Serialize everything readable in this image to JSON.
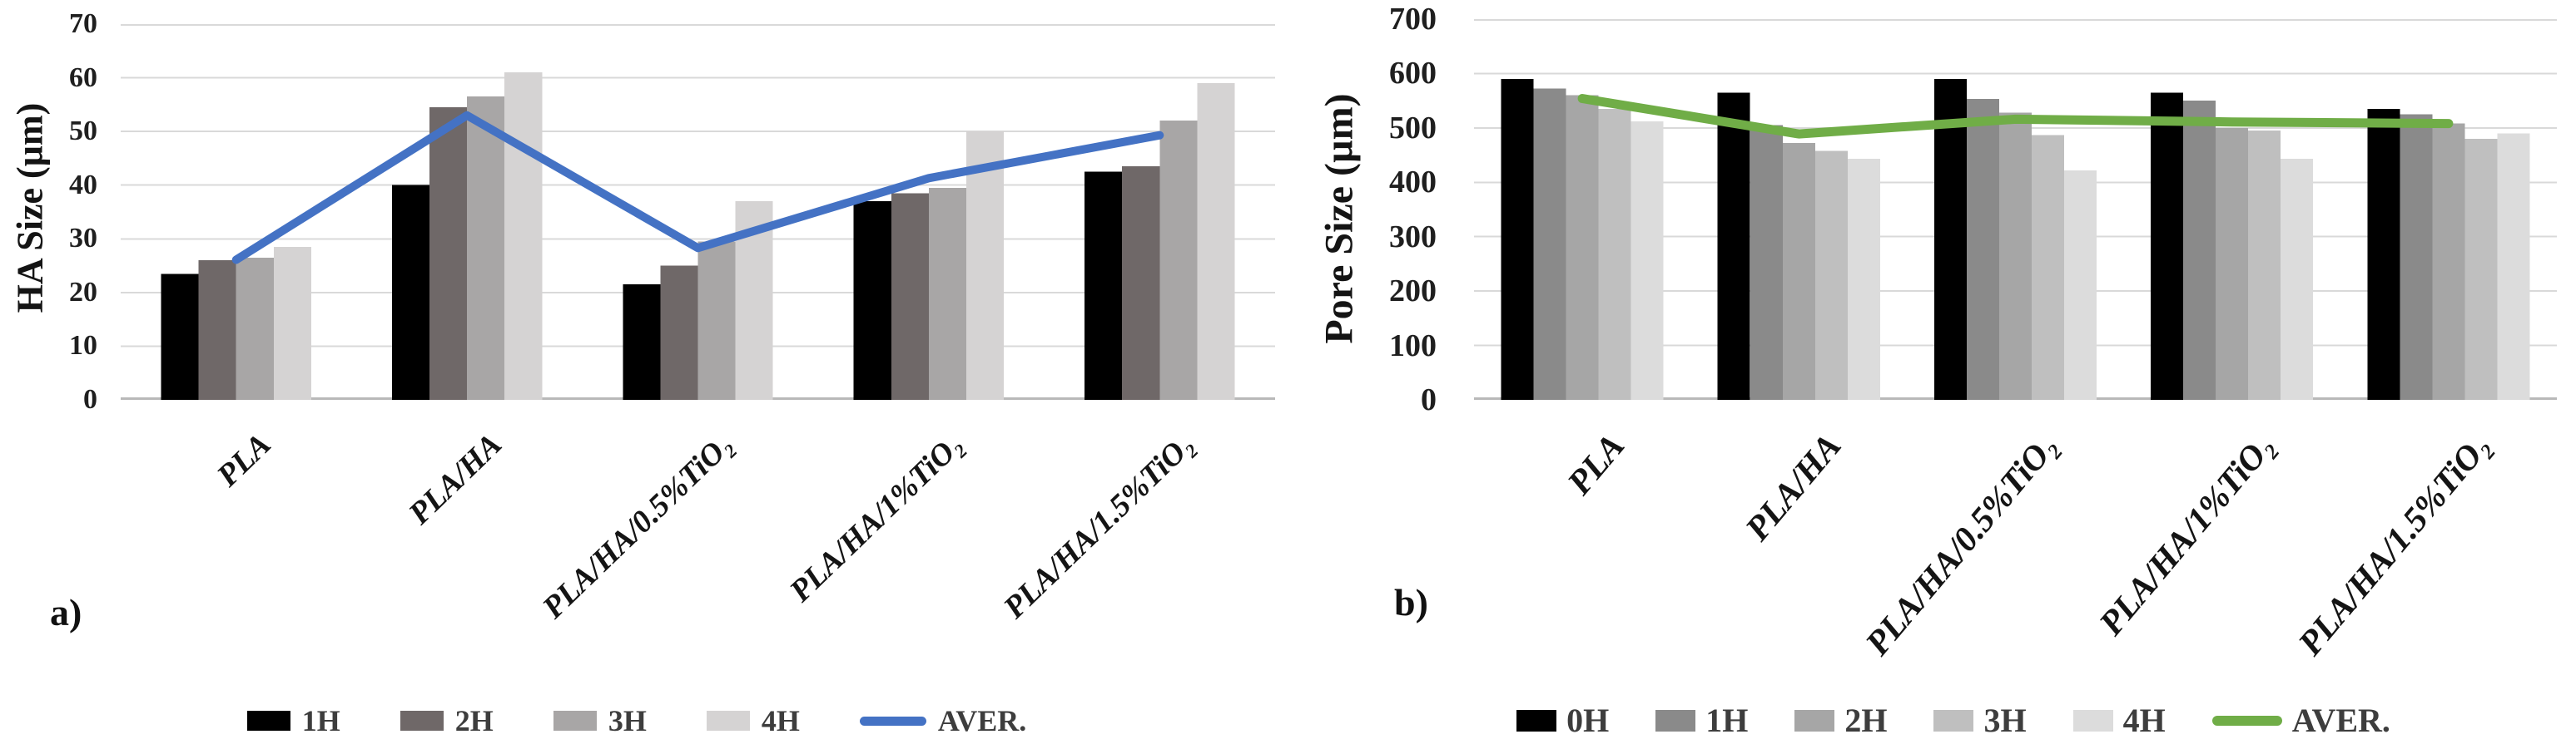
{
  "figure": {
    "background": "#ffffff",
    "grid_color": "#d9d9d9",
    "baseline_color": "#b9b9b9"
  },
  "chart_data": [
    {
      "id": "a",
      "type": "bar+line",
      "panel_label": "a)",
      "title": "",
      "xlabel": "",
      "ylabel": "HA Size (µm)",
      "categories": [
        "PLA",
        "PLA/HA",
        "PLA/HA/0.5%TiO₂",
        "PLA/HA/1%TiO₂",
        "PLA/HA/1.5%TiO₂"
      ],
      "bar_series": [
        {
          "name": "1H",
          "color": "#000000",
          "values": [
            23.5,
            40,
            21.5,
            37,
            42.5
          ]
        },
        {
          "name": "2H",
          "color": "#6f6868",
          "values": [
            26,
            54.5,
            25,
            38.5,
            43.5
          ]
        },
        {
          "name": "3H",
          "color": "#a8a6a6",
          "values": [
            26.5,
            56.5,
            29.5,
            39.5,
            52
          ]
        },
        {
          "name": "4H",
          "color": "#d5d3d3",
          "values": [
            28.5,
            61,
            37,
            50,
            59
          ]
        }
      ],
      "line_series": {
        "name": "AVER.",
        "color": "#4472c4",
        "values": [
          26.1,
          53,
          28.3,
          41.3,
          49.3
        ]
      },
      "ylim": [
        0,
        70
      ],
      "ytick_step": 10,
      "grid": true,
      "legend_position": "bottom"
    },
    {
      "id": "b",
      "type": "bar+line",
      "panel_label": "b)",
      "title": "",
      "xlabel": "",
      "ylabel": "Pore Size (µm)",
      "categories": [
        "PLA",
        "PLA/HA",
        "PLA/HA/0.5%TiO₂",
        "PLA/HA/1%TiO₂",
        "PLA/HA/1.5%TiO₂"
      ],
      "bar_series": [
        {
          "name": "0H",
          "color": "#000000",
          "values": [
            590,
            565,
            590,
            565,
            535
          ]
        },
        {
          "name": "1H",
          "color": "#8a8a8a",
          "values": [
            572,
            505,
            553,
            550,
            525
          ]
        },
        {
          "name": "2H",
          "color": "#a6a6a6",
          "values": [
            560,
            472,
            528,
            500,
            508
          ]
        },
        {
          "name": "3H",
          "color": "#bfbfbf",
          "values": [
            535,
            458,
            487,
            495,
            480
          ]
        },
        {
          "name": "4H",
          "color": "#dcdcdc",
          "values": [
            512,
            443,
            422,
            443,
            490
          ]
        }
      ],
      "line_series": {
        "name": "AVER.",
        "color": "#70ad47",
        "values": [
          554,
          489,
          516,
          511,
          508
        ]
      },
      "ylim": [
        0,
        700
      ],
      "ytick_step": 100,
      "grid": true,
      "legend_position": "bottom"
    }
  ]
}
